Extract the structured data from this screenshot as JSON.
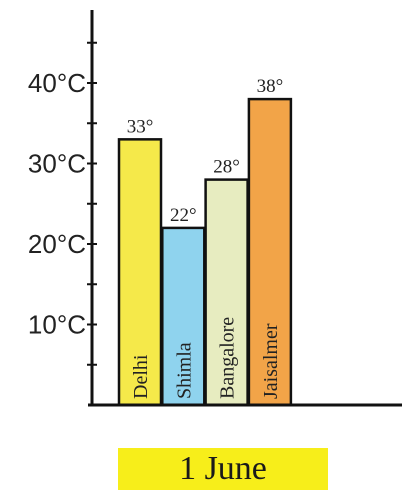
{
  "chart_data": {
    "type": "bar",
    "categories": [
      "Delhi",
      "Shimla",
      "Bangalore",
      "Jaisalmer"
    ],
    "values": [
      33,
      22,
      28,
      38
    ],
    "data_labels": [
      "33°",
      "22°",
      "28°",
      "38°"
    ],
    "colors": [
      "#f5e94a",
      "#8fd3ee",
      "#e7ecc0",
      "#f2a448"
    ],
    "ylim": [
      0,
      50
    ],
    "yticks": [
      10,
      20,
      30,
      40
    ],
    "ytick_labels": [
      "10°C",
      "20°C",
      "30°C",
      "40°C"
    ],
    "minor_tick_step": 5,
    "grid": false,
    "xlabel": "1 June"
  }
}
